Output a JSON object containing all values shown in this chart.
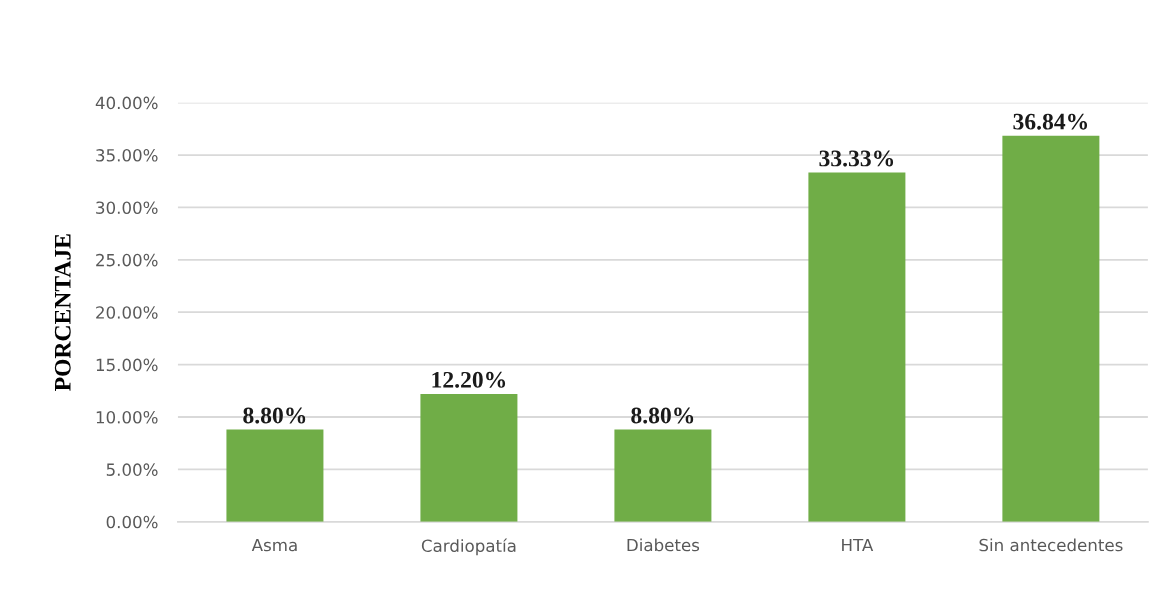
{
  "chart_data": {
    "type": "bar",
    "ylabel": "PORCENTAJE",
    "categories": [
      "Asma",
      "Cardiopatía",
      "Diabetes",
      "HTA",
      "Sin antecedentes"
    ],
    "values": [
      8.8,
      12.2,
      8.8,
      33.33,
      36.84
    ],
    "value_labels": [
      "8.80%",
      "12.20%",
      "8.80%",
      "33.33%",
      "36.84%"
    ],
    "color": "#70ad47",
    "ylim": [
      0,
      40
    ],
    "yticks": [
      {
        "value": 0,
        "label": "0.00%"
      },
      {
        "value": 5,
        "label": "5.00%"
      },
      {
        "value": 10,
        "label": "10.00%"
      },
      {
        "value": 15,
        "label": "15.00%"
      },
      {
        "value": 20,
        "label": "20.00%"
      },
      {
        "value": 25,
        "label": "25.00%"
      },
      {
        "value": 30,
        "label": "30.00%"
      },
      {
        "value": 35,
        "label": "35.00%"
      },
      {
        "value": 40,
        "label": "40.00%"
      }
    ],
    "grid": "y",
    "legend": false
  }
}
